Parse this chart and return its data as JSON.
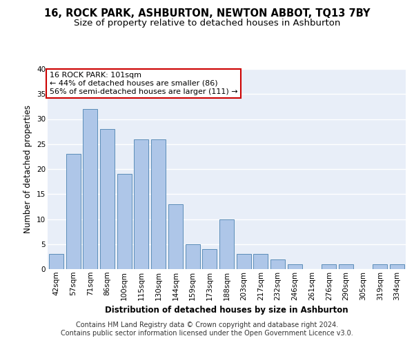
{
  "title": "16, ROCK PARK, ASHBURTON, NEWTON ABBOT, TQ13 7BY",
  "subtitle": "Size of property relative to detached houses in Ashburton",
  "xlabel": "Distribution of detached houses by size in Ashburton",
  "ylabel": "Number of detached properties",
  "categories": [
    "42sqm",
    "57sqm",
    "71sqm",
    "86sqm",
    "100sqm",
    "115sqm",
    "130sqm",
    "144sqm",
    "159sqm",
    "173sqm",
    "188sqm",
    "203sqm",
    "217sqm",
    "232sqm",
    "246sqm",
    "261sqm",
    "276sqm",
    "290sqm",
    "305sqm",
    "319sqm",
    "334sqm"
  ],
  "values": [
    3,
    23,
    32,
    28,
    19,
    26,
    26,
    13,
    5,
    4,
    10,
    3,
    3,
    2,
    1,
    0,
    1,
    1,
    0,
    1,
    1
  ],
  "bar_color": "#aec6e8",
  "bar_edge_color": "#5b8db8",
  "annotation_box_text": "16 ROCK PARK: 101sqm\n← 44% of detached houses are smaller (86)\n56% of semi-detached houses are larger (111) →",
  "annotation_box_color": "#ffffff",
  "annotation_box_edgecolor": "#cc0000",
  "ylim": [
    0,
    40
  ],
  "yticks": [
    0,
    5,
    10,
    15,
    20,
    25,
    30,
    35,
    40
  ],
  "footer_line1": "Contains HM Land Registry data © Crown copyright and database right 2024.",
  "footer_line2": "Contains public sector information licensed under the Open Government Licence v3.0.",
  "background_color": "#e8eef8",
  "grid_color": "#ffffff",
  "title_fontsize": 10.5,
  "subtitle_fontsize": 9.5,
  "axis_label_fontsize": 8.5,
  "tick_fontsize": 7.5,
  "annotation_fontsize": 8,
  "footer_fontsize": 7
}
